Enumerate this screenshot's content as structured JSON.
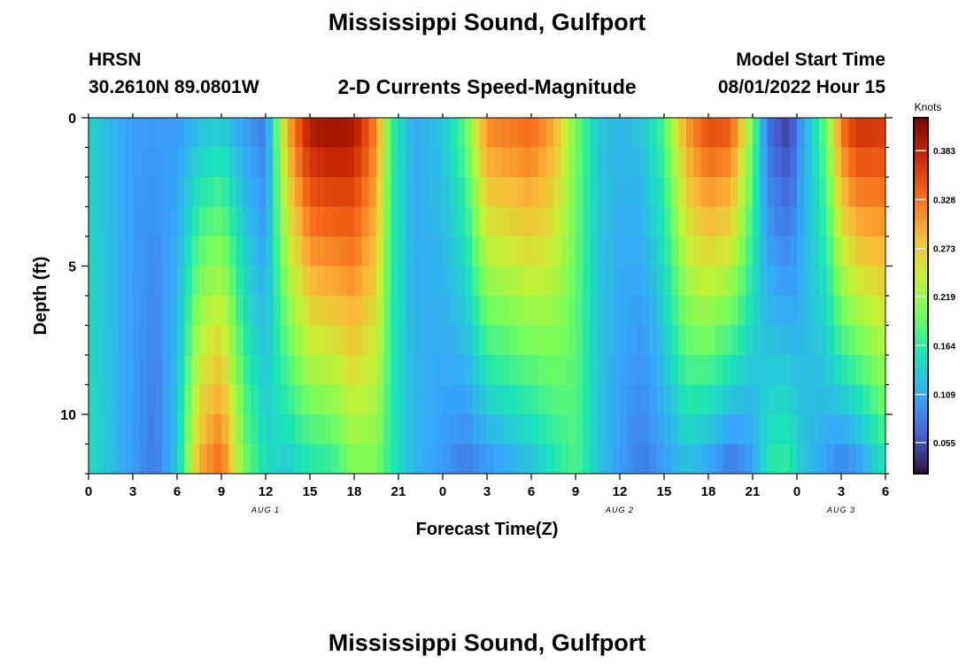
{
  "station_title": "Mississippi Sound, Gulfport",
  "model_name": "HRSN",
  "coordinates": "30.2610N  89.0801W",
  "chart_title": "2-D Currents Speed-Magnitude",
  "model_start_label": "Model Start Time",
  "model_start_value": "08/01/2022 Hour 15",
  "footer_title": "Mississippi Sound, Gulfport",
  "chart_data": {
    "type": "heatmap",
    "title": "2-D Currents Speed-Magnitude",
    "xlabel": "Forecast Time(Z)",
    "ylabel": "Depth (ft)",
    "xlim": [
      0,
      54
    ],
    "ylim": [
      0,
      12
    ],
    "y_inverted": true,
    "x_tick_positions": [
      0,
      3,
      6,
      9,
      12,
      15,
      18,
      21,
      24,
      27,
      30,
      33,
      36,
      39,
      42,
      45,
      48,
      51,
      54
    ],
    "x_tick_labels": [
      "0",
      "3",
      "6",
      "9",
      "12",
      "15",
      "18",
      "21",
      "0",
      "3",
      "6",
      "9",
      "12",
      "15",
      "18",
      "21",
      "0",
      "3",
      "6"
    ],
    "y_tick_values": [
      0,
      5,
      10
    ],
    "y_tick_labels": [
      "0",
      "5",
      "10"
    ],
    "date_labels": [
      {
        "hour": 12,
        "text": "AUG 1"
      },
      {
        "hour": 36,
        "text": "AUG 2"
      },
      {
        "hour": 51,
        "text": "AUG 3"
      }
    ],
    "colorbar": {
      "units": "Knots",
      "min": 0.02,
      "max": 0.42,
      "tick_values": [
        0.055,
        0.109,
        0.164,
        0.219,
        0.273,
        0.328,
        0.383
      ],
      "tick_labels": [
        "0.055",
        "0.109",
        "0.164",
        "0.219",
        "0.273",
        "0.328",
        "0.383"
      ],
      "palette": [
        "#30123b",
        "#4662d7",
        "#36aaf9",
        "#1ae4b6",
        "#72fe5e",
        "#c8ef34",
        "#faba39",
        "#f66b19",
        "#ca2a04",
        "#7a0403"
      ]
    },
    "speed_profile_surface_hours": [
      0,
      3,
      4.5,
      6,
      7.5,
      9,
      10.5,
      12,
      13.5,
      15,
      16.5,
      18,
      19.5,
      20.5,
      22,
      24,
      25.5,
      27,
      30,
      31.5,
      33,
      34.5,
      36,
      37.5,
      39,
      40.5,
      42,
      43.5,
      45,
      46,
      47.5,
      48,
      50,
      51,
      52,
      54
    ],
    "speed_profile_surface_knots": [
      0.14,
      0.1,
      0.1,
      0.1,
      0.12,
      0.13,
      0.1,
      0.08,
      0.3,
      0.4,
      0.41,
      0.4,
      0.32,
      0.17,
      0.11,
      0.13,
      0.19,
      0.32,
      0.34,
      0.3,
      0.2,
      0.13,
      0.12,
      0.13,
      0.18,
      0.31,
      0.36,
      0.35,
      0.2,
      0.07,
      0.04,
      0.08,
      0.2,
      0.33,
      0.38,
      0.37
    ],
    "speed_profile_bottom_hours": [
      0,
      3,
      4.5,
      6,
      7.5,
      9,
      10.5,
      12,
      13.5,
      15,
      16.5,
      18,
      19.5,
      20.5,
      22,
      24,
      25.5,
      27,
      30,
      31.5,
      33,
      34.5,
      36,
      37.5,
      39,
      40.5,
      42,
      43.5,
      45,
      46,
      47.5,
      48,
      50,
      51,
      52,
      54
    ],
    "speed_profile_bottom_knots": [
      0.15,
      0.1,
      0.08,
      0.13,
      0.3,
      0.34,
      0.2,
      0.15,
      0.13,
      0.15,
      0.16,
      0.2,
      0.2,
      0.16,
      0.12,
      0.1,
      0.08,
      0.09,
      0.12,
      0.15,
      0.18,
      0.13,
      0.1,
      0.08,
      0.1,
      0.12,
      0.1,
      0.07,
      0.1,
      0.16,
      0.17,
      0.14,
      0.1,
      0.08,
      0.09,
      0.15
    ]
  }
}
